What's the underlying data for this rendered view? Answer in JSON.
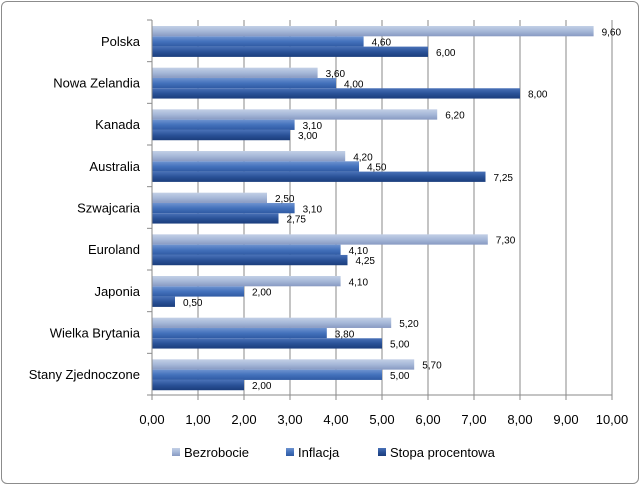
{
  "chart_data": {
    "type": "bar",
    "orientation": "horizontal",
    "categories": [
      "Polska",
      "Nowa Zelandia",
      "Kanada",
      "Australia",
      "Szwajcaria",
      "Euroland",
      "Japonia",
      "Wielka Brytania",
      "Stany Zjednoczone"
    ],
    "series": [
      {
        "name": "Bezrobocie",
        "values": [
          9.6,
          3.6,
          6.2,
          4.2,
          2.5,
          7.3,
          4.1,
          5.2,
          5.7
        ],
        "labels": [
          "9,60",
          "3,60",
          "6,20",
          "4,20",
          "2,50",
          "7,30",
          "4,10",
          "5,20",
          "5,70"
        ],
        "color": "#9fb3d4"
      },
      {
        "name": "Inflacja",
        "values": [
          4.6,
          4.0,
          3.1,
          4.5,
          3.1,
          4.1,
          2.0,
          3.8,
          5.0
        ],
        "labels": [
          "4,60",
          "4,00",
          "3,10",
          "4,50",
          "3,10",
          "4,10",
          "2,00",
          "3,80",
          "5,00"
        ],
        "color": "#3f6bb4"
      },
      {
        "name": "Stopa procentowa",
        "values": [
          6.0,
          8.0,
          3.0,
          7.25,
          2.75,
          4.25,
          0.5,
          5.0,
          2.0
        ],
        "labels": [
          "6,00",
          "8,00",
          "3,00",
          "7,25",
          "2,75",
          "4,25",
          "0,50",
          "5,00",
          "2,00"
        ],
        "color": "#274f96"
      }
    ],
    "xlim": [
      0,
      10
    ],
    "xticks": [
      "0,00",
      "1,00",
      "2,00",
      "3,00",
      "4,00",
      "5,00",
      "6,00",
      "7,00",
      "8,00",
      "9,00",
      "10,00"
    ],
    "title": "",
    "xlabel": "",
    "ylabel": "",
    "grid": "vertical",
    "legend_position": "bottom"
  }
}
